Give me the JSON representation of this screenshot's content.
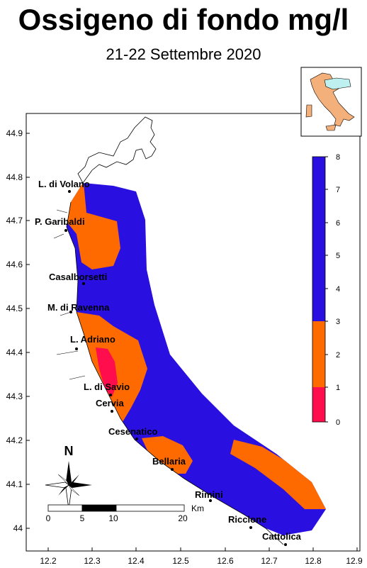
{
  "title": "Ossigeno di fondo mg/l",
  "subtitle": "21-22 Settembre 2020",
  "axes": {
    "lon_ticks": [
      "12.2",
      "12.3",
      "12.4",
      "12.5",
      "12.6",
      "12.7",
      "12.8",
      "12.9"
    ],
    "lat_ticks": [
      "44.9",
      "44.8",
      "44.7",
      "44.6",
      "44.5",
      "44.4",
      "44.3",
      "44.2",
      "44.1",
      "44"
    ]
  },
  "towns": [
    {
      "name": "L. di Volano"
    },
    {
      "name": "P. Garibaldi"
    },
    {
      "name": "Casalborsetti"
    },
    {
      "name": "M. di Ravenna"
    },
    {
      "name": "L. Adriano"
    },
    {
      "name": "L. di Savio"
    },
    {
      "name": "Cervia"
    },
    {
      "name": "Cesenatico"
    },
    {
      "name": "Bellaria"
    },
    {
      "name": "Rimini"
    },
    {
      "name": "Riccione"
    },
    {
      "name": "Cattolica"
    }
  ],
  "colorbar": {
    "labels": [
      "8",
      "7",
      "6",
      "5",
      "4",
      "3",
      "2",
      "1",
      "0"
    ],
    "classes": [
      {
        "range": "3-8",
        "color": "#2a10e0"
      },
      {
        "range": "1-3",
        "color": "#ff6a00"
      },
      {
        "range": "0-1",
        "color": "#ff0d4d"
      }
    ]
  },
  "scalebar": {
    "labels": [
      "0",
      "5",
      "10",
      "20"
    ],
    "unit": "Km"
  },
  "north_label": "N",
  "colors": {
    "high": "#2a10e0",
    "mid": "#ff6a00",
    "low": "#ff0d4d",
    "inset_emilia": "#bff0f0",
    "inset_italy": "#f4b07a"
  }
}
